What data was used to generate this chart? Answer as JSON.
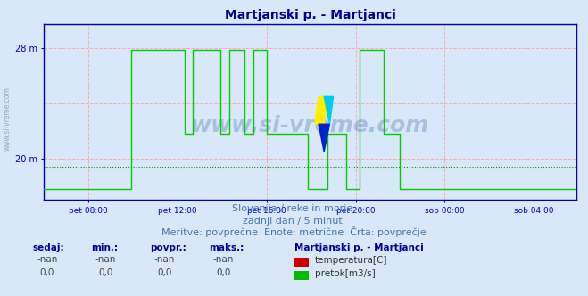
{
  "title": "Martjanski p. - Martjanci",
  "title_color": "#000099",
  "title_fontsize": 10,
  "bg_color": "#d8e8f8",
  "plot_bg_color": "#d8e8f8",
  "grid_color": "#ffaaaa",
  "avg_line_color": "#009900",
  "axis_color": "#0000cc",
  "tick_color": "#0000cc",
  "ylim": [
    17.0,
    29.8
  ],
  "yticks": [
    20,
    28
  ],
  "ytick_labels": [
    "20 m",
    "28 m"
  ],
  "xlim": [
    0,
    287
  ],
  "xtick_positions": [
    24,
    72,
    120,
    168,
    216,
    264
  ],
  "xtick_labels": [
    "pet 08:00",
    "pet 12:00",
    "pet 16:00",
    "pet 20:00",
    "sob 00:00",
    "sob 04:00"
  ],
  "watermark": "www.si-vreme.com",
  "watermark_color": "#7799cc",
  "watermark_alpha": 0.5,
  "subtitle1": "Slovenija / reke in morje.",
  "subtitle2": "zadnji dan / 5 minut.",
  "subtitle3": "Meritve: povprečne  Enote: metrične  Črta: povprečje",
  "subtitle_color": "#4477aa",
  "subtitle_fontsize": 8,
  "legend_title": "Martjanski p. - Martjanci",
  "legend_title_color": "#000099",
  "legend_color1": "#cc0000",
  "legend_label1": "temperatura[C]",
  "legend_color2": "#00bb00",
  "legend_label2": "pretok[m3/s]",
  "table_headers": [
    "sedaj:",
    "min.:",
    "povpr.:",
    "maks.:"
  ],
  "table_row1": [
    "-nan",
    "-nan",
    "-nan",
    "-nan"
  ],
  "table_row2": [
    "0,0",
    "0,0",
    "0,0",
    "0,0"
  ],
  "table_color": "#000099",
  "avg_value": 19.4,
  "green_line_color": "#00cc00",
  "blue_axis_color": "#0000bb",
  "red_arrow_color": "#cc0000",
  "side_text": "www.si-vreme.com",
  "side_text_color": "#8899bb"
}
